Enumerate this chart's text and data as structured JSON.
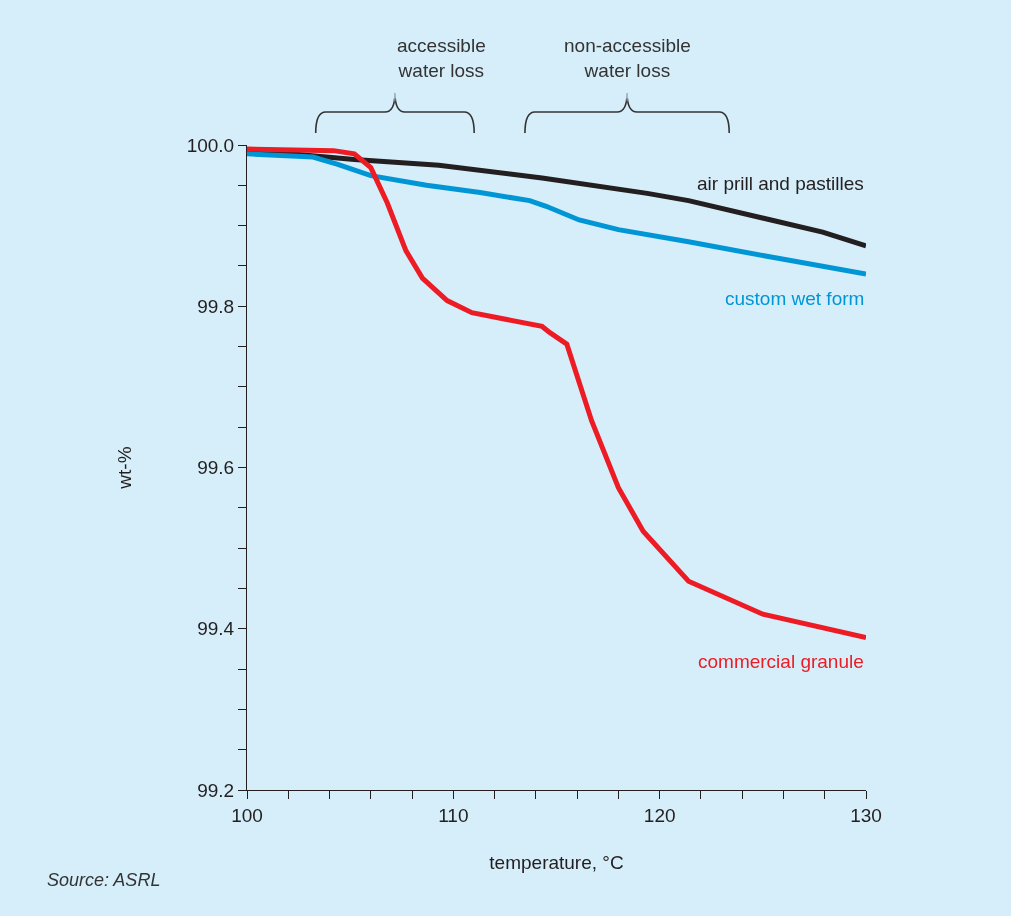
{
  "chart_data": {
    "type": "line",
    "xlabel": "temperature, °C",
    "ylabel": "wt-%",
    "xlim": [
      100,
      130
    ],
    "ylim": [
      99.2,
      100.0
    ],
    "xticks": [
      100,
      {
        "value": 102,
        "label": null
      },
      {
        "value": 104,
        "label": null
      },
      {
        "value": 106,
        "label": null
      },
      {
        "value": 108,
        "label": null
      },
      110,
      {
        "value": 112,
        "label": null
      },
      {
        "value": 114,
        "label": null
      },
      {
        "value": 116,
        "label": null
      },
      {
        "value": 118,
        "label": null
      },
      120,
      {
        "value": 122,
        "label": null
      },
      {
        "value": 124,
        "label": null
      },
      {
        "value": 126,
        "label": null
      },
      {
        "value": 128,
        "label": null
      },
      130
    ],
    "yticks": [
      99.2,
      {
        "value": 99.25,
        "label": null
      },
      {
        "value": 99.3,
        "label": null
      },
      {
        "value": 99.35,
        "label": null
      },
      99.4,
      {
        "value": 99.45,
        "label": null
      },
      {
        "value": 99.5,
        "label": null
      },
      {
        "value": 99.55,
        "label": null
      },
      99.6,
      {
        "value": 99.65,
        "label": null
      },
      {
        "value": 99.7,
        "label": null
      },
      {
        "value": 99.75,
        "label": null
      },
      99.8,
      {
        "value": 99.85,
        "label": null
      },
      {
        "value": 99.9,
        "label": null
      },
      {
        "value": 99.95,
        "label": null
      },
      {
        "value": 100.0,
        "label": "100.0"
      }
    ],
    "grid": false,
    "legend": false,
    "marker": "none",
    "line_style": "solid",
    "series": [
      {
        "name": "air prill and pastilles",
        "color": "#231f20",
        "x": [
          100,
          105.2,
          109.3,
          114.3,
          119.4,
          121.4,
          125.4,
          127.9,
          130
        ],
        "values": [
          99.994,
          99.982,
          99.975,
          99.959,
          99.94,
          99.931,
          99.907,
          99.892,
          99.875
        ]
      },
      {
        "name": "custom wet form",
        "color": "#0096d6",
        "x": [
          100,
          103.2,
          104.4,
          106.0,
          108.7,
          111.3,
          113.7,
          114.5,
          116.1,
          118.0,
          121.4,
          125.4,
          130
        ],
        "values": [
          99.989,
          99.985,
          99.976,
          99.962,
          99.95,
          99.941,
          99.931,
          99.924,
          99.907,
          99.895,
          99.88,
          99.861,
          99.84
        ]
      },
      {
        "name": "commercial granule",
        "color": "#ed1c24",
        "x": [
          100,
          104.2,
          105.2,
          106.0,
          106.8,
          107.7,
          108.5,
          109.7,
          110.9,
          114.3,
          114.7,
          115.5,
          116.7,
          118.0,
          119.2,
          121.4,
          125.0,
          130
        ],
        "values": [
          99.995,
          99.993,
          99.989,
          99.972,
          99.928,
          99.869,
          99.835,
          99.807,
          99.792,
          99.775,
          99.767,
          99.753,
          99.658,
          99.575,
          99.521,
          99.459,
          99.418,
          99.389
        ]
      }
    ],
    "annotations": [
      "accessible\nwater loss",
      "non-accessible\nwater loss",
      "Source: ASRL"
    ]
  }
}
